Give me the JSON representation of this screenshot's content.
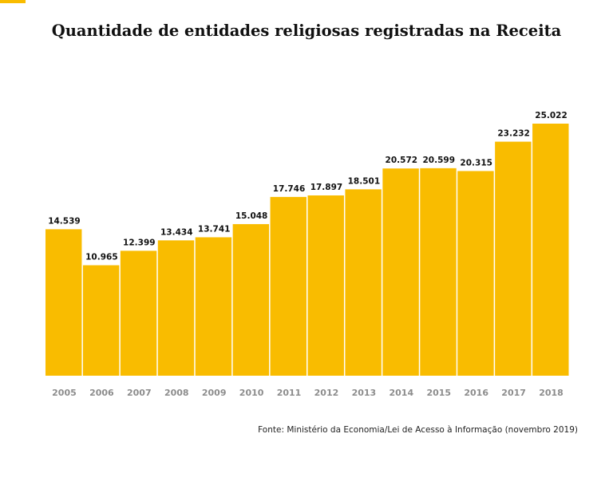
{
  "colors": {
    "accent": "#F9BC00",
    "bar": "#F9BC00",
    "year_label": "#8c8c8c",
    "value_label": "#111111"
  },
  "chart_data": {
    "type": "bar",
    "title": "Quantidade de entidades religiosas registradas na Receita",
    "categories": [
      "2005",
      "2006",
      "2007",
      "2008",
      "2009",
      "2010",
      "2011",
      "2012",
      "2013",
      "2014",
      "2015",
      "2016",
      "2017",
      "2018"
    ],
    "values": [
      14539,
      10965,
      12399,
      13434,
      13741,
      15048,
      17746,
      17897,
      18501,
      20572,
      20599,
      20315,
      23232,
      25022
    ],
    "value_labels": [
      "14.539",
      "10.965",
      "12.399",
      "13.434",
      "13.741",
      "15.048",
      "17.746",
      "17.897",
      "18.501",
      "20.572",
      "20.599",
      "20.315",
      "23.232",
      "25.022"
    ],
    "ylim": [
      0,
      25022
    ],
    "grid": false,
    "source": "Fonte: Ministério da Economia/Lei de Acesso à Informação (novembro 2019)"
  }
}
